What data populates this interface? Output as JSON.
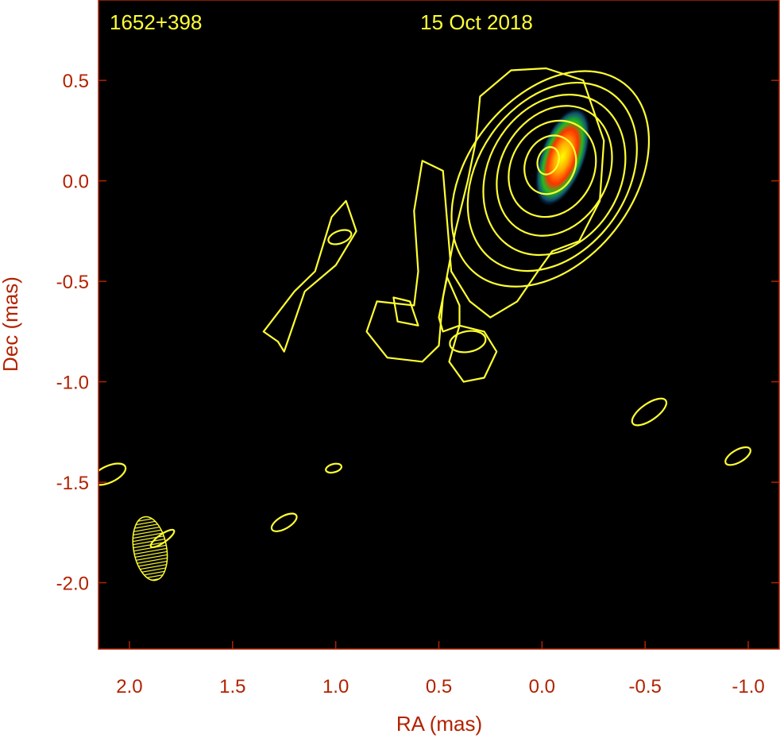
{
  "chart_data": {
    "type": "contour",
    "source_name": "1652+398",
    "epoch": "15 Oct 2018",
    "xlabel": "RA (mas)",
    "ylabel": "Dec (mas)",
    "xlim": [
      2.15,
      -1.15
    ],
    "ylim": [
      -2.33,
      0.9
    ],
    "x_ticks": [
      {
        "value": 2.0,
        "label": "2.0"
      },
      {
        "value": 1.5,
        "label": "1.5"
      },
      {
        "value": 1.0,
        "label": "1.0"
      },
      {
        "value": 0.5,
        "label": "0.5"
      },
      {
        "value": 0.0,
        "label": "0.0"
      },
      {
        "value": -0.5,
        "label": "-0.5"
      },
      {
        "value": -1.0,
        "label": "-1.0"
      }
    ],
    "y_ticks": [
      {
        "value": 0.5,
        "label": "0.5"
      },
      {
        "value": 0.0,
        "label": "0.0"
      },
      {
        "value": -0.5,
        "label": "-0.5"
      },
      {
        "value": -1.0,
        "label": "-1.0"
      },
      {
        "value": -1.5,
        "label": "-1.5"
      },
      {
        "value": -2.0,
        "label": "-2.0"
      }
    ],
    "colors": {
      "background": "#000000",
      "axes": "#b22200",
      "contours": "#ffff33"
    },
    "core": {
      "ra": -0.1,
      "dec": 0.12
    },
    "core_contours": [
      {
        "ra": -0.03,
        "dec": 0.1,
        "a": 0.07,
        "b": 0.05,
        "angle": 20
      },
      {
        "ra": -0.04,
        "dec": 0.08,
        "a": 0.15,
        "b": 0.12,
        "angle": 25
      },
      {
        "ra": -0.05,
        "dec": 0.06,
        "a": 0.25,
        "b": 0.2,
        "angle": 30
      },
      {
        "ra": -0.06,
        "dec": 0.05,
        "a": 0.34,
        "b": 0.26,
        "angle": 30
      },
      {
        "ra": -0.06,
        "dec": 0.03,
        "a": 0.42,
        "b": 0.32,
        "angle": 30
      },
      {
        "ra": -0.05,
        "dec": 0.02,
        "a": 0.51,
        "b": 0.36,
        "angle": 35
      },
      {
        "ra": -0.04,
        "dec": 0.01,
        "a": 0.6,
        "b": 0.4,
        "angle": 38
      }
    ],
    "outer_contours": [
      [
        [
          0.58,
          -0.9
        ],
        [
          0.75,
          -0.88
        ],
        [
          0.85,
          -0.75
        ],
        [
          0.8,
          -0.6
        ],
        [
          0.62,
          -0.62
        ],
        [
          0.6,
          -0.45
        ],
        [
          0.62,
          -0.15
        ],
        [
          0.58,
          0.1
        ],
        [
          0.48,
          0.05
        ],
        [
          0.46,
          -0.2
        ],
        [
          0.44,
          -0.45
        ],
        [
          0.35,
          -0.6
        ],
        [
          0.25,
          -0.68
        ],
        [
          0.12,
          -0.6
        ],
        [
          0.02,
          -0.45
        ],
        [
          -0.05,
          -0.35
        ],
        [
          -0.18,
          -0.3
        ],
        [
          -0.28,
          -0.1
        ],
        [
          -0.3,
          0.2
        ],
        [
          -0.2,
          0.5
        ],
        [
          -0.02,
          0.56
        ],
        [
          0.15,
          0.55
        ],
        [
          0.3,
          0.42
        ],
        [
          0.32,
          0.2
        ],
        [
          0.36,
          0.0
        ],
        [
          0.42,
          -0.25
        ],
        [
          0.48,
          -0.58
        ],
        [
          0.5,
          -0.82
        ],
        [
          0.58,
          -0.9
        ]
      ],
      [
        [
          0.6,
          -0.72
        ],
        [
          0.7,
          -0.7
        ],
        [
          0.72,
          -0.58
        ],
        [
          0.64,
          -0.6
        ],
        [
          0.6,
          -0.72
        ]
      ],
      [
        [
          0.4,
          -0.72
        ],
        [
          0.48,
          -0.75
        ],
        [
          0.5,
          -0.68
        ],
        [
          0.46,
          -0.48
        ],
        [
          0.4,
          -0.62
        ],
        [
          0.4,
          -0.72
        ]
      ],
      [
        [
          0.28,
          -0.75
        ],
        [
          0.4,
          -0.72
        ],
        [
          0.45,
          -0.9
        ],
        [
          0.38,
          -1.0
        ],
        [
          0.28,
          -0.98
        ],
        [
          0.22,
          -0.85
        ],
        [
          0.28,
          -0.75
        ]
      ],
      [
        [
          1.28,
          -0.8
        ],
        [
          1.35,
          -0.75
        ],
        [
          1.2,
          -0.55
        ],
        [
          1.1,
          -0.45
        ],
        [
          1.02,
          -0.18
        ],
        [
          0.95,
          -0.1
        ],
        [
          0.9,
          -0.25
        ],
        [
          1.0,
          -0.42
        ],
        [
          1.15,
          -0.55
        ],
        [
          1.25,
          -0.85
        ],
        [
          1.28,
          -0.8
        ]
      ]
    ],
    "small_contours": [
      {
        "ra": 0.98,
        "dec": -0.28,
        "a": 0.06,
        "b": 0.03,
        "angle": 70
      },
      {
        "ra": 0.36,
        "dec": -0.8,
        "a": 0.09,
        "b": 0.05,
        "angle": 80
      },
      {
        "ra": -0.52,
        "dec": -1.15,
        "a": 0.1,
        "b": 0.04,
        "angle": 55
      },
      {
        "ra": -0.95,
        "dec": -1.37,
        "a": 0.07,
        "b": 0.03,
        "angle": 60
      },
      {
        "ra": 2.1,
        "dec": -1.46,
        "a": 0.09,
        "b": 0.04,
        "angle": 65
      },
      {
        "ra": 1.01,
        "dec": -1.43,
        "a": 0.04,
        "b": 0.02,
        "angle": 75
      },
      {
        "ra": 1.25,
        "dec": -1.7,
        "a": 0.07,
        "b": 0.03,
        "angle": 60
      },
      {
        "ra": 1.84,
        "dec": -1.78,
        "a": 0.07,
        "b": 0.02,
        "angle": 55
      }
    ],
    "beam": {
      "ra": 1.9,
      "dec": -1.83,
      "major": 0.32,
      "minor": 0.16,
      "angle": -10
    }
  }
}
